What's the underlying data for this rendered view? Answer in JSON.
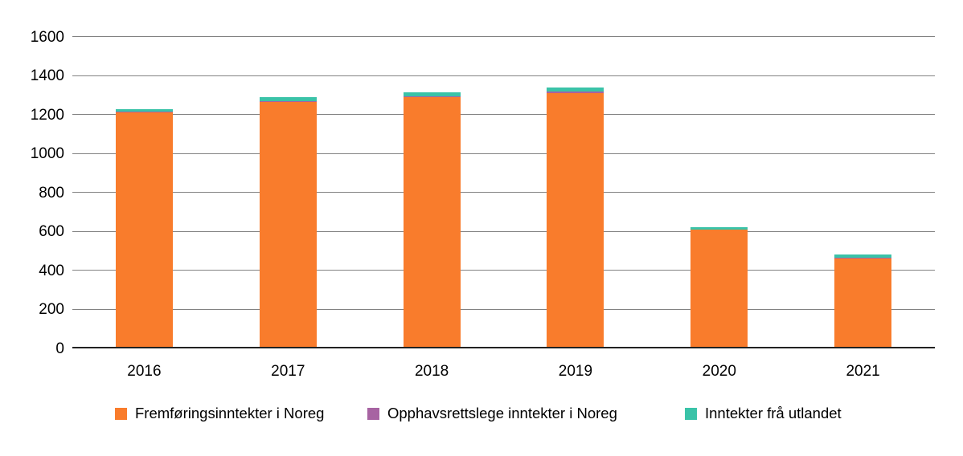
{
  "chart_data": {
    "type": "bar",
    "stacked": true,
    "title": "",
    "xlabel": "",
    "ylabel": "",
    "categories": [
      "2016",
      "2017",
      "2018",
      "2019",
      "2020",
      "2021"
    ],
    "series": [
      {
        "name": "Fremføringsinntekter i Noreg",
        "color": "#F97C2C",
        "values": [
          1212,
          1266,
          1290,
          1310,
          610,
          462
        ]
      },
      {
        "name": "Opphavsrettslege inntekter i Noreg",
        "color": "#A763A2",
        "values": [
          3,
          6,
          7,
          10,
          2,
          5
        ]
      },
      {
        "name": "Inntekter frå utlandet",
        "color": "#3AC3A8",
        "values": [
          12,
          18,
          18,
          20,
          10,
          15
        ]
      }
    ],
    "stack_totals": [
      1227,
      1290,
      1315,
      1340,
      622,
      482
    ],
    "ylim": [
      0,
      1600
    ],
    "yticks": [
      0,
      200,
      400,
      600,
      800,
      1000,
      1200,
      1400,
      1600
    ],
    "grid": "horizontal",
    "legend_position": "bottom",
    "colors": {
      "gridline": "#828282",
      "baseline": "#222222",
      "text": "#000000"
    }
  }
}
